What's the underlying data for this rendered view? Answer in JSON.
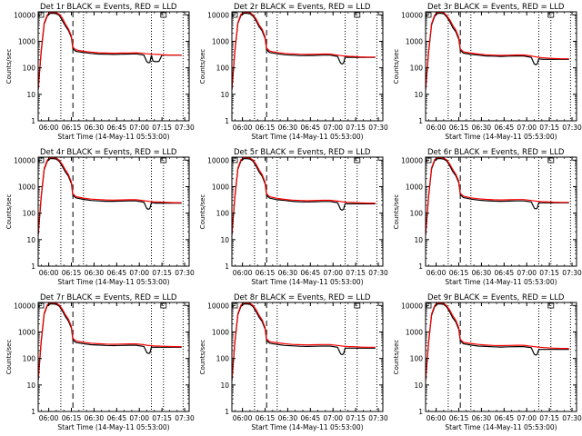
{
  "page": {
    "background": "#ffffff"
  },
  "colors": {
    "events": "#000000",
    "lld": "#ff0000",
    "axis": "#000000"
  },
  "shared": {
    "type": "line",
    "ylabel": "Counts/sec",
    "xlabel": "Start Time (14-May-11 05:53:00)",
    "xtick_labels": [
      "06:00",
      "06:15",
      "06:30",
      "06:45",
      "07:00",
      "07:15",
      "07:30"
    ],
    "xtick_values_min": [
      7,
      22,
      37,
      52,
      67,
      82,
      97
    ],
    "xlim_min": [
      0,
      100
    ],
    "ytick_labels": [
      "1",
      "10",
      "100",
      "1000",
      "10000"
    ],
    "ytick_values": [
      1,
      10,
      100,
      1000,
      10000
    ],
    "ylim": [
      1,
      13000
    ],
    "yscale": "log",
    "dotted_vlines_min": [
      15,
      30,
      75,
      83,
      96
    ],
    "dashed_vlines_min": [
      23
    ],
    "legend_box": "square"
  },
  "chart_data": [
    {
      "title": "Det 1r BLACK = Events, RED = LLD",
      "x": [
        0,
        2,
        4,
        6,
        8,
        10,
        12,
        14,
        16,
        18,
        20,
        22,
        23,
        25,
        30,
        35,
        40,
        45,
        50,
        55,
        60,
        65,
        70,
        72,
        73,
        74,
        75,
        76,
        78,
        80,
        82,
        85,
        90,
        95
      ],
      "series": [
        {
          "name": "Events",
          "color": "#000000",
          "values": [
            15,
            400,
            4500,
            9000,
            11500,
            11500,
            11000,
            9500,
            6000,
            3800,
            2600,
            1400,
            520,
            420,
            380,
            350,
            330,
            325,
            320,
            325,
            330,
            335,
            300,
            170,
            155,
            160,
            300,
            180,
            170,
            175,
            300,
            300,
            300,
            300
          ]
        },
        {
          "name": "LLD",
          "color": "#ff0000",
          "values": [
            15,
            450,
            5000,
            10000,
            12500,
            12500,
            12000,
            10500,
            7500,
            4500,
            3000,
            1600,
            600,
            480,
            420,
            390,
            370,
            360,
            355,
            360,
            365,
            370,
            350,
            340,
            335,
            330,
            330,
            325,
            320,
            320,
            310,
            305,
            300,
            300
          ]
        }
      ]
    },
    {
      "title": "Det 2r BLACK = Events, RED = LLD",
      "x": [
        0,
        2,
        4,
        6,
        8,
        10,
        12,
        14,
        16,
        18,
        20,
        22,
        23,
        25,
        30,
        35,
        40,
        45,
        50,
        55,
        60,
        65,
        70,
        72,
        73,
        74,
        75,
        76,
        78,
        80,
        82,
        85,
        90,
        95
      ],
      "series": [
        {
          "name": "Events",
          "color": "#000000",
          "values": [
            15,
            420,
            4800,
            9500,
            11500,
            11500,
            11000,
            9000,
            6000,
            3500,
            2500,
            1300,
            480,
            380,
            340,
            310,
            300,
            290,
            290,
            295,
            300,
            300,
            270,
            150,
            140,
            150,
            260,
            250,
            250,
            250,
            250,
            250,
            250,
            250
          ]
        },
        {
          "name": "LLD",
          "color": "#ff0000",
          "values": [
            15,
            470,
            5200,
            10500,
            12500,
            12500,
            12000,
            10000,
            7000,
            4200,
            2900,
            1500,
            560,
            430,
            380,
            350,
            335,
            325,
            320,
            325,
            330,
            330,
            300,
            290,
            285,
            280,
            280,
            275,
            270,
            270,
            265,
            260,
            255,
            255
          ]
        }
      ]
    },
    {
      "title": "Det 3r BLACK = Events, RED = LLD",
      "x": [
        0,
        2,
        4,
        6,
        8,
        10,
        12,
        14,
        16,
        18,
        20,
        22,
        23,
        25,
        30,
        35,
        40,
        45,
        50,
        55,
        60,
        65,
        70,
        72,
        73,
        74,
        75,
        76,
        78,
        80,
        82,
        85,
        90,
        95
      ],
      "series": [
        {
          "name": "Events",
          "color": "#000000",
          "values": [
            15,
            380,
            4200,
            8800,
            11500,
            11500,
            11000,
            8500,
            5500,
            3300,
            2300,
            1200,
            460,
            360,
            320,
            300,
            280,
            275,
            270,
            275,
            280,
            280,
            250,
            140,
            130,
            140,
            220,
            215,
            210,
            210,
            210,
            210,
            210,
            210
          ]
        },
        {
          "name": "LLD",
          "color": "#ff0000",
          "values": [
            15,
            430,
            4700,
            9800,
            12500,
            12500,
            12000,
            9500,
            6500,
            4000,
            2700,
            1400,
            520,
            400,
            360,
            330,
            310,
            300,
            295,
            300,
            305,
            305,
            280,
            265,
            260,
            255,
            250,
            245,
            240,
            235,
            230,
            225,
            220,
            220
          ]
        }
      ]
    },
    {
      "title": "Det 4r BLACK = Events, RED = LLD",
      "x": [
        0,
        2,
        4,
        6,
        8,
        10,
        12,
        14,
        16,
        18,
        20,
        22,
        23,
        25,
        30,
        35,
        40,
        45,
        50,
        55,
        60,
        65,
        70,
        72,
        73,
        74,
        75,
        76,
        78,
        80,
        82,
        85,
        90,
        95
      ],
      "series": [
        {
          "name": "Events",
          "color": "#000000",
          "values": [
            15,
            390,
            4400,
            9200,
            11500,
            11500,
            11000,
            9000,
            5800,
            3600,
            2500,
            1300,
            470,
            380,
            330,
            300,
            290,
            280,
            280,
            285,
            290,
            290,
            260,
            150,
            140,
            150,
            250,
            245,
            240,
            240,
            240,
            240,
            240,
            240
          ]
        },
        {
          "name": "LLD",
          "color": "#ff0000",
          "values": [
            15,
            440,
            4900,
            10200,
            12500,
            12500,
            12000,
            10000,
            6800,
            4300,
            2900,
            1500,
            540,
            420,
            370,
            340,
            325,
            315,
            310,
            315,
            320,
            320,
            295,
            285,
            280,
            275,
            275,
            270,
            265,
            265,
            260,
            255,
            250,
            250
          ]
        }
      ]
    },
    {
      "title": "Det 5r BLACK = Events, RED = LLD",
      "x": [
        0,
        2,
        4,
        6,
        8,
        10,
        12,
        14,
        16,
        18,
        20,
        22,
        23,
        25,
        30,
        35,
        40,
        45,
        50,
        55,
        60,
        65,
        70,
        72,
        73,
        74,
        75,
        76,
        78,
        80,
        82,
        85,
        90,
        95
      ],
      "series": [
        {
          "name": "Events",
          "color": "#000000",
          "values": [
            15,
            400,
            4600,
            9400,
            11500,
            11500,
            11000,
            9200,
            6000,
            3600,
            2500,
            1300,
            470,
            370,
            320,
            300,
            280,
            270,
            265,
            270,
            275,
            275,
            250,
            140,
            130,
            140,
            230,
            225,
            225,
            225,
            225,
            225,
            225,
            225
          ]
        },
        {
          "name": "LLD",
          "color": "#ff0000",
          "values": [
            15,
            450,
            5100,
            10400,
            12500,
            12500,
            12000,
            10200,
            7000,
            4300,
            2900,
            1500,
            540,
            420,
            360,
            330,
            310,
            300,
            295,
            300,
            305,
            305,
            285,
            275,
            270,
            265,
            265,
            260,
            255,
            255,
            250,
            245,
            240,
            240
          ]
        }
      ]
    },
    {
      "title": "Det 6r BLACK = Events, RED = LLD",
      "x": [
        0,
        2,
        4,
        6,
        8,
        10,
        12,
        14,
        16,
        18,
        20,
        22,
        23,
        25,
        30,
        35,
        40,
        45,
        50,
        55,
        60,
        65,
        70,
        72,
        73,
        74,
        75,
        76,
        78,
        80,
        82,
        85,
        90,
        95
      ],
      "series": [
        {
          "name": "Events",
          "color": "#000000",
          "values": [
            15,
            410,
            4700,
            9600,
            11500,
            11500,
            11000,
            9300,
            6100,
            3700,
            2600,
            1400,
            490,
            390,
            340,
            310,
            295,
            285,
            280,
            285,
            290,
            290,
            265,
            155,
            145,
            155,
            250,
            245,
            245,
            245,
            245,
            245,
            245,
            245
          ]
        },
        {
          "name": "LLD",
          "color": "#ff0000",
          "values": [
            15,
            460,
            5200,
            10600,
            12500,
            12500,
            12000,
            10300,
            7100,
            4400,
            3000,
            1600,
            560,
            440,
            380,
            350,
            330,
            320,
            315,
            320,
            325,
            325,
            300,
            290,
            285,
            280,
            280,
            275,
            270,
            270,
            265,
            260,
            255,
            255
          ]
        }
      ]
    },
    {
      "title": "Det 7r BLACK = Events, RED = LLD",
      "x": [
        0,
        2,
        4,
        6,
        8,
        10,
        12,
        14,
        16,
        18,
        20,
        22,
        23,
        25,
        30,
        35,
        40,
        45,
        50,
        55,
        60,
        65,
        70,
        72,
        73,
        74,
        75,
        76,
        78,
        80,
        82,
        85,
        90,
        95
      ],
      "series": [
        {
          "name": "Events",
          "color": "#000000",
          "values": [
            15,
            420,
            4800,
            9700,
            11500,
            11500,
            11000,
            9400,
            6200,
            3800,
            2600,
            1400,
            500,
            400,
            360,
            330,
            320,
            310,
            305,
            310,
            315,
            315,
            285,
            165,
            155,
            160,
            270,
            265,
            265,
            265,
            265,
            265,
            265,
            265
          ]
        },
        {
          "name": "LLD",
          "color": "#ff0000",
          "values": [
            15,
            470,
            5300,
            10700,
            12500,
            12500,
            12000,
            10400,
            7200,
            4500,
            3100,
            1600,
            580,
            460,
            410,
            380,
            360,
            350,
            345,
            350,
            355,
            355,
            330,
            315,
            310,
            305,
            305,
            300,
            295,
            295,
            290,
            285,
            280,
            280
          ]
        }
      ]
    },
    {
      "title": "Det 8r BLACK = Events, RED = LLD",
      "x": [
        0,
        2,
        4,
        6,
        8,
        10,
        12,
        14,
        16,
        18,
        20,
        22,
        23,
        25,
        30,
        35,
        40,
        45,
        50,
        55,
        60,
        65,
        70,
        72,
        73,
        74,
        75,
        76,
        78,
        80,
        82,
        85,
        90,
        95
      ],
      "series": [
        {
          "name": "Events",
          "color": "#000000",
          "values": [
            15,
            400,
            4500,
            9300,
            11500,
            11500,
            11000,
            9100,
            5900,
            3600,
            2500,
            1300,
            480,
            380,
            340,
            310,
            300,
            290,
            285,
            290,
            295,
            295,
            265,
            150,
            140,
            150,
            250,
            245,
            245,
            245,
            245,
            245,
            245,
            245
          ]
        },
        {
          "name": "LLD",
          "color": "#ff0000",
          "values": [
            15,
            450,
            5000,
            10300,
            12500,
            12500,
            12000,
            10100,
            6900,
            4300,
            2900,
            1500,
            550,
            430,
            390,
            360,
            340,
            330,
            325,
            330,
            335,
            335,
            310,
            300,
            295,
            290,
            290,
            285,
            280,
            280,
            275,
            270,
            265,
            265
          ]
        }
      ]
    },
    {
      "title": "Det 9r BLACK = Events, RED = LLD",
      "x": [
        0,
        2,
        4,
        6,
        8,
        10,
        12,
        14,
        16,
        18,
        20,
        22,
        23,
        25,
        30,
        35,
        40,
        45,
        50,
        55,
        60,
        65,
        70,
        72,
        73,
        74,
        75,
        76,
        78,
        80,
        82,
        85,
        90,
        95
      ],
      "series": [
        {
          "name": "Events",
          "color": "#000000",
          "values": [
            15,
            390,
            4300,
            9000,
            11500,
            11500,
            11000,
            8800,
            5700,
            3400,
            2400,
            1250,
            460,
            360,
            320,
            295,
            285,
            275,
            270,
            275,
            280,
            280,
            255,
            145,
            135,
            145,
            225,
            220,
            220,
            220,
            220,
            220,
            220,
            220
          ]
        },
        {
          "name": "LLD",
          "color": "#ff0000",
          "values": [
            15,
            440,
            4800,
            10000,
            12500,
            12500,
            12000,
            9800,
            6700,
            4100,
            2800,
            1450,
            530,
            410,
            370,
            340,
            320,
            310,
            305,
            310,
            315,
            315,
            290,
            280,
            275,
            270,
            270,
            265,
            260,
            255,
            250,
            245,
            240,
            240
          ]
        }
      ]
    }
  ]
}
